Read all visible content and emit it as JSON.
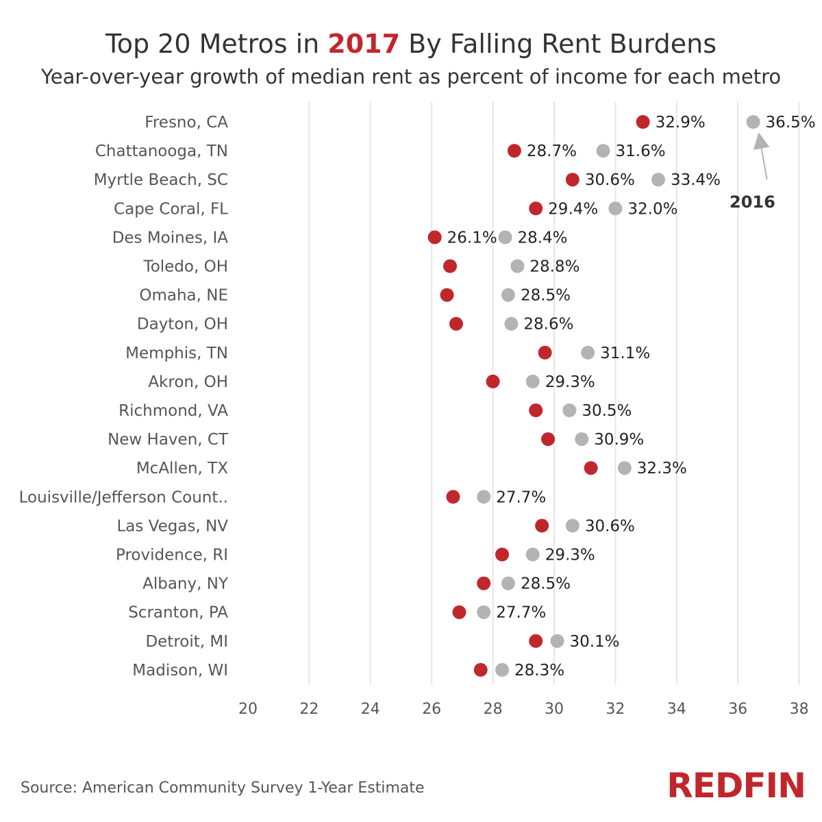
{
  "header": {
    "title_prefix": "Top 20 Metros in ",
    "title_highlight": "2017",
    "title_suffix": " By Falling Rent Burdens",
    "subtitle": "Year-over-year growth of median rent as percent of income for each metro"
  },
  "footer": {
    "source": "Source: American Community Survey 1-Year Estimate",
    "logo": "REDFIN"
  },
  "colors": {
    "y2017": "#c0272d",
    "y2016": "#b3b3b3",
    "grid": "#e6e6e6",
    "label_text": "#555555"
  },
  "chart_data": {
    "type": "scatter",
    "title": "Top 20 Metros in 2017 By Falling Rent Burdens",
    "subtitle": "Year-over-year growth of median rent as percent of income for each metro",
    "xlim": [
      19,
      38
    ],
    "x_ticks": [
      20,
      22,
      24,
      26,
      28,
      30,
      32,
      34,
      36,
      38
    ],
    "grid": "vertical",
    "annotation": {
      "text": "2016",
      "points_to": "Fresno, CA 2016 value"
    },
    "categories": [
      "Fresno, CA",
      "Chattanooga, TN",
      "Myrtle Beach, SC",
      "Cape Coral, FL",
      "Des Moines, IA",
      "Toledo, OH",
      "Omaha, NE",
      "Dayton, OH",
      "Memphis, TN",
      "Akron, OH",
      "Richmond, VA",
      "New Haven, CT",
      "McAllen, TX",
      "Louisville/Jefferson Count..",
      "Las Vegas, NV",
      "Providence, RI",
      "Albany, NY",
      "Scranton, PA",
      "Detroit, MI",
      "Madison, WI"
    ],
    "series": [
      {
        "name": "2017",
        "values": [
          32.9,
          28.7,
          30.6,
          29.4,
          26.1,
          26.6,
          26.5,
          26.8,
          29.7,
          28.0,
          29.4,
          29.8,
          31.2,
          26.7,
          29.6,
          28.3,
          27.7,
          26.9,
          29.4,
          27.6
        ],
        "labels": [
          "32.9%",
          "28.7%",
          "30.6%",
          "29.4%",
          "26.1%",
          "",
          "",
          "",
          "",
          "",
          "",
          "",
          "",
          "",
          "",
          "",
          "",
          "",
          "",
          ""
        ]
      },
      {
        "name": "2016",
        "values": [
          36.5,
          31.6,
          33.4,
          32.0,
          28.4,
          28.8,
          28.5,
          28.6,
          31.1,
          29.3,
          30.5,
          30.9,
          32.3,
          27.7,
          30.6,
          29.3,
          28.5,
          27.7,
          30.1,
          28.3
        ],
        "labels": [
          "36.5%",
          "31.6%",
          "33.4%",
          "32.0%",
          "28.4%",
          "28.8%",
          "28.5%",
          "28.6%",
          "31.1%",
          "29.3%",
          "30.5%",
          "30.9%",
          "32.3%",
          "27.7%",
          "30.6%",
          "29.3%",
          "28.5%",
          "27.7%",
          "30.1%",
          "28.3%"
        ]
      }
    ]
  }
}
